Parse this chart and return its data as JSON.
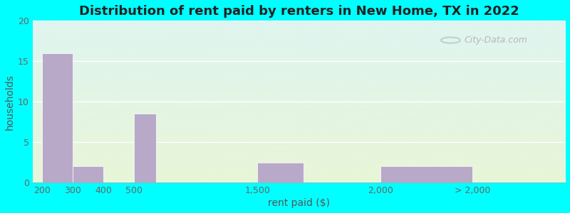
{
  "title": "Distribution of rent paid by renters in New Home, TX in 2022",
  "xlabel": "rent paid ($)",
  "ylabel": "households",
  "tick_labels": [
    "200",
    "300",
    "400",
    "500",
    "1,500",
    "2,000",
    "> 2,000"
  ],
  "tick_positions": [
    0,
    1,
    2,
    3,
    7,
    11,
    14
  ],
  "bar_left_edges": [
    0,
    1,
    3,
    7,
    11
  ],
  "bar_widths": [
    1,
    1,
    0.7,
    1.5,
    3
  ],
  "bar_values": [
    16,
    2,
    8.5,
    2.5,
    2
  ],
  "bar_color": "#b8a9c9",
  "bar_edge_color": "#b8a9c9",
  "ylim": [
    0,
    20
  ],
  "yticks": [
    0,
    5,
    10,
    15,
    20
  ],
  "xlim": [
    -0.3,
    17
  ],
  "background_color": "#00ffff",
  "grid_color": "#cccccc",
  "title_fontsize": 13,
  "axis_label_fontsize": 10,
  "tick_fontsize": 9,
  "watermark": "City-Data.com",
  "bg_top_color": "#e0f5f5",
  "bg_bottom_color": "#e8f5e0"
}
